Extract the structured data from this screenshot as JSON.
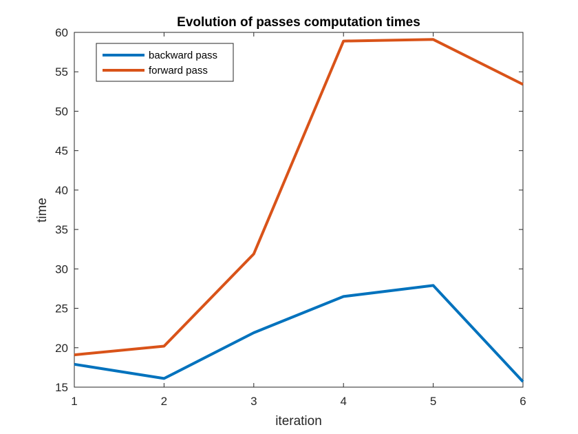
{
  "chart_data": {
    "type": "line",
    "title": "Evolution of passes computation times",
    "xlabel": "iteration",
    "ylabel": "time",
    "xlim": [
      1,
      6
    ],
    "ylim": [
      15,
      60
    ],
    "xticks": [
      "1",
      "2",
      "3",
      "4",
      "5",
      "6"
    ],
    "yticks": [
      "15",
      "20",
      "25",
      "30",
      "35",
      "40",
      "45",
      "50",
      "55",
      "60"
    ],
    "grid": false,
    "legend_location": "top-left",
    "x": [
      1,
      2,
      3,
      4,
      5,
      6
    ],
    "series": [
      {
        "name": "backward pass",
        "color": "#0072BD",
        "values": [
          17.9,
          16.1,
          21.9,
          26.5,
          27.9,
          15.7
        ]
      },
      {
        "name": "forward pass",
        "color": "#D95319",
        "values": [
          19.1,
          20.2,
          31.9,
          58.9,
          59.1,
          53.4
        ]
      }
    ]
  }
}
